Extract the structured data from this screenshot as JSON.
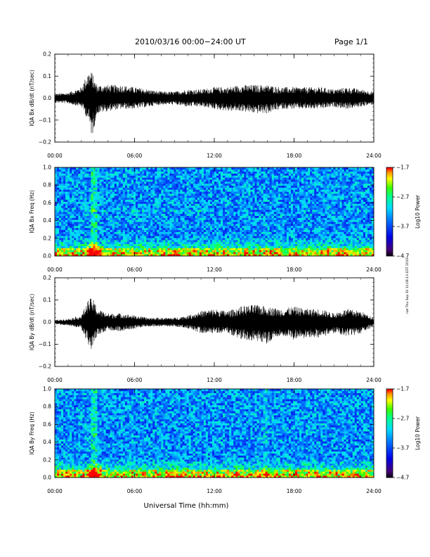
{
  "header": {
    "title": "2010/03/16  00:00−24:00 UT",
    "page": "Page 1/1"
  },
  "side_note": "nat Thu Sep 30 11:08:13 EDT 2010",
  "chart_data": [
    {
      "type": "line",
      "ylabel": "IQA Bx dB/dt (nT/sec)",
      "ylim": [
        -0.2,
        0.2
      ],
      "yticks": [
        -0.2,
        -0.1,
        0.0,
        0.1,
        0.2
      ],
      "ytick_labels": [
        "−0.2",
        "−0.1",
        "0.0",
        "0.1",
        "0.2"
      ],
      "xlim": [
        "00:00",
        "24:00"
      ],
      "xtick_labels": [
        "00:00",
        "06:00",
        "12:00",
        "18:00",
        "24:00"
      ],
      "series": [
        {
          "x_hours": [
            0,
            1,
            2,
            2.5,
            2.8,
            3.0,
            3.2,
            4,
            5,
            6,
            7,
            8,
            9,
            10,
            11,
            12,
            13,
            14,
            15,
            16,
            17,
            18,
            19,
            20,
            21,
            22,
            23,
            24
          ],
          "envelope_max": [
            0.02,
            0.025,
            0.05,
            0.12,
            0.12,
            0.08,
            0.06,
            0.06,
            0.06,
            0.05,
            0.04,
            0.03,
            0.03,
            0.04,
            0.04,
            0.05,
            0.05,
            0.06,
            0.06,
            0.06,
            0.05,
            0.05,
            0.05,
            0.05,
            0.04,
            0.05,
            0.04,
            0.03
          ],
          "envelope_min": [
            -0.02,
            -0.025,
            -0.04,
            -0.1,
            -0.18,
            -0.12,
            -0.07,
            -0.06,
            -0.05,
            -0.05,
            -0.04,
            -0.03,
            -0.03,
            -0.04,
            -0.04,
            -0.05,
            -0.06,
            -0.06,
            -0.07,
            -0.07,
            -0.05,
            -0.05,
            -0.05,
            -0.05,
            -0.04,
            -0.05,
            -0.04,
            -0.03
          ]
        }
      ]
    },
    {
      "type": "heatmap",
      "ylabel": "IQA Bx Freq (Hz)",
      "ylim": [
        0.0,
        1.0
      ],
      "ytick_labels": [
        "0.0",
        "0.2",
        "0.4",
        "0.6",
        "0.8",
        "1.0"
      ],
      "xlim": [
        "00:00",
        "24:00"
      ],
      "xtick_labels": [
        "00:00",
        "06:00",
        "12:00",
        "18:00",
        "24:00"
      ],
      "colorbar": {
        "label": "Log10 Power",
        "range": [
          -4.7,
          -1.7
        ],
        "tick_labels": [
          "−1.7",
          "−2.7",
          "−3.7",
          "−4.7"
        ],
        "colors": [
          "#ff0000",
          "#ffa500",
          "#ffff00",
          "#00ff00",
          "#00ffff",
          "#0000ff",
          "#5000a0",
          "#000000"
        ]
      }
    },
    {
      "type": "line",
      "ylabel": "IQA By dB/dt (nT/sec)",
      "ylim": [
        -0.2,
        0.2
      ],
      "yticks": [
        -0.2,
        -0.1,
        0.0,
        0.1,
        0.2
      ],
      "ytick_labels": [
        "−0.2",
        "−0.1",
        "0.0",
        "0.1",
        "0.2"
      ],
      "xlim": [
        "00:00",
        "24:00"
      ],
      "xtick_labels": [
        "00:00",
        "06:00",
        "12:00",
        "18:00",
        "24:00"
      ],
      "series": [
        {
          "x_hours": [
            0,
            1,
            2,
            2.5,
            2.8,
            3.0,
            3.2,
            4,
            5,
            6,
            7,
            8,
            9,
            10,
            11,
            12,
            13,
            14,
            15,
            16,
            17,
            18,
            19,
            20,
            21,
            22,
            23,
            24
          ],
          "envelope_max": [
            0.01,
            0.015,
            0.03,
            0.1,
            0.11,
            0.09,
            0.06,
            0.04,
            0.04,
            0.03,
            0.02,
            0.02,
            0.02,
            0.03,
            0.05,
            0.06,
            0.05,
            0.07,
            0.08,
            0.07,
            0.06,
            0.07,
            0.06,
            0.06,
            0.04,
            0.06,
            0.05,
            0.02
          ],
          "envelope_min": [
            -0.01,
            -0.015,
            -0.03,
            -0.1,
            -0.13,
            -0.09,
            -0.06,
            -0.04,
            -0.04,
            -0.03,
            -0.02,
            -0.02,
            -0.02,
            -0.03,
            -0.05,
            -0.05,
            -0.05,
            -0.08,
            -0.09,
            -0.1,
            -0.06,
            -0.08,
            -0.07,
            -0.07,
            -0.05,
            -0.07,
            -0.05,
            -0.02
          ]
        }
      ]
    },
    {
      "type": "heatmap",
      "ylabel": "IQA By Freq (Hz)",
      "ylim": [
        0.0,
        1.0
      ],
      "ytick_labels": [
        "0.0",
        "0.2",
        "0.4",
        "0.6",
        "0.8",
        "1.0"
      ],
      "xlim": [
        "00:00",
        "24:00"
      ],
      "xtick_labels": [
        "00:00",
        "06:00",
        "12:00",
        "18:00",
        "24:00"
      ],
      "xlabel": "Universal Time (hh:mm)",
      "colorbar": {
        "label": "Log10 Power",
        "range": [
          -4.7,
          -1.7
        ],
        "tick_labels": [
          "−1.7",
          "−2.7",
          "−3.7",
          "−4.7"
        ],
        "colors": [
          "#ff0000",
          "#ffa500",
          "#ffff00",
          "#00ff00",
          "#00ffff",
          "#0000ff",
          "#5000a0",
          "#000000"
        ]
      }
    }
  ]
}
